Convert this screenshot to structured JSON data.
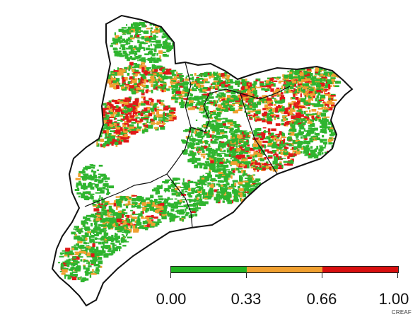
{
  "map": {
    "region": "Catalonia",
    "colors": {
      "low": "#2fb52f",
      "mid": "#f0a030",
      "high": "#e01818",
      "outline": "#111111",
      "background": "#ffffff"
    }
  },
  "legend": {
    "segments": [
      {
        "color": "#22b522"
      },
      {
        "color": "#f0a030"
      },
      {
        "color": "#d80f0f"
      }
    ],
    "ticks": [
      "0.00",
      "0.33",
      "0.66",
      "1.00"
    ]
  },
  "credit": "CREAF"
}
